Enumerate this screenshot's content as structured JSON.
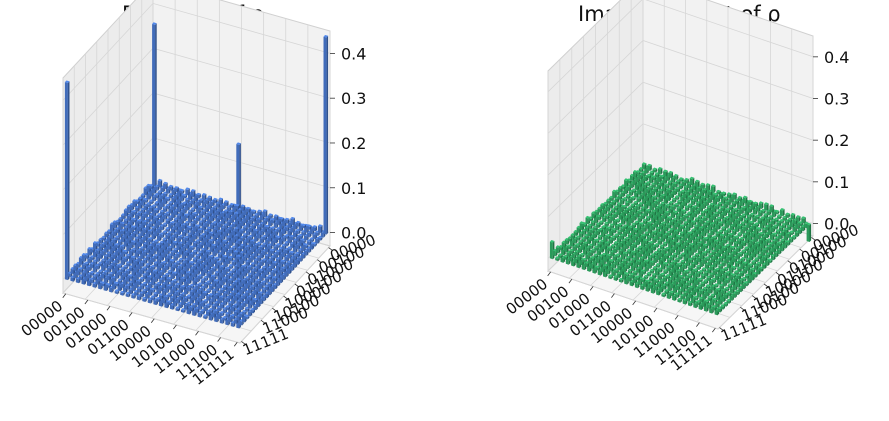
{
  "chart_data": [
    {
      "type": "bar3d",
      "title": "Real part of ρ",
      "basis_tick_labels": [
        "00000",
        "00100",
        "01000",
        "01100",
        "10000",
        "10100",
        "11000",
        "11100",
        "11111"
      ],
      "basis_tick_labels_depth": [
        "00000",
        "00100",
        "01000",
        "01100",
        "10000",
        "10100",
        "11000",
        "11111"
      ],
      "basis_size": 32,
      "zlim": [
        -0.03,
        0.45
      ],
      "z_ticks": [
        "0.0",
        "0.1",
        "0.2",
        "0.3",
        "0.4"
      ],
      "z_tick_values": [
        0.0,
        0.1,
        0.2,
        0.3,
        0.4
      ],
      "bar_color": "#4472c4",
      "prominent_elements": [
        {
          "row": "00000",
          "col": "00000",
          "value": 0.36
        },
        {
          "row": "00000",
          "col": "11111",
          "value": 0.44
        },
        {
          "row": "11111",
          "col": "00000",
          "value": 0.44
        },
        {
          "row": "11111",
          "col": "11111",
          "value": 0.41
        }
      ],
      "background_level": 0.01
    },
    {
      "type": "bar3d",
      "title": "Imaginary part of ρ",
      "basis_tick_labels": [
        "00000",
        "00100",
        "01000",
        "01100",
        "10000",
        "10100",
        "11000",
        "11100",
        "11111"
      ],
      "basis_tick_labels_depth": [
        "00000",
        "00100",
        "01000",
        "01100",
        "10000",
        "10100",
        "11000",
        "11111"
      ],
      "basis_size": 32,
      "zlim": [
        -0.03,
        0.45
      ],
      "z_ticks": [
        "0.0",
        "0.1",
        "0.2",
        "0.3",
        "0.4"
      ],
      "z_tick_values": [
        0.0,
        0.1,
        0.2,
        0.3,
        0.4
      ],
      "bar_color": "#2ca25f",
      "prominent_elements": [
        {
          "row": "00000",
          "col": "11111",
          "value": 0.04
        },
        {
          "row": "11111",
          "col": "00000",
          "value": -0.04
        }
      ],
      "background_level": 0.01
    }
  ]
}
